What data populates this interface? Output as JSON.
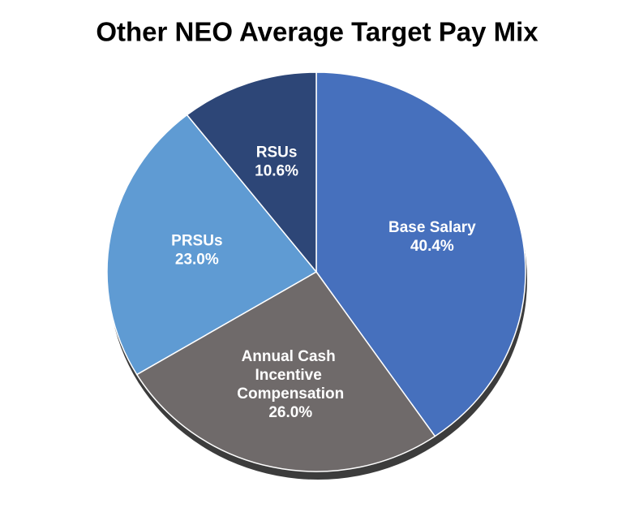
{
  "chart_data": {
    "type": "pie",
    "title": "Other NEO Average Target Pay Mix",
    "categories": [
      "Base Salary",
      "Annual Cash Incentive Compensation",
      "PRSUs",
      "RSUs"
    ],
    "values": [
      40.4,
      26.0,
      23.0,
      10.6
    ],
    "value_labels": [
      "40.4%",
      "26.0%",
      "23.0%",
      "10.6%"
    ],
    "colors": [
      "#4670bd",
      "#6f6a6a",
      "#5f9bd3",
      "#2d4677"
    ]
  }
}
